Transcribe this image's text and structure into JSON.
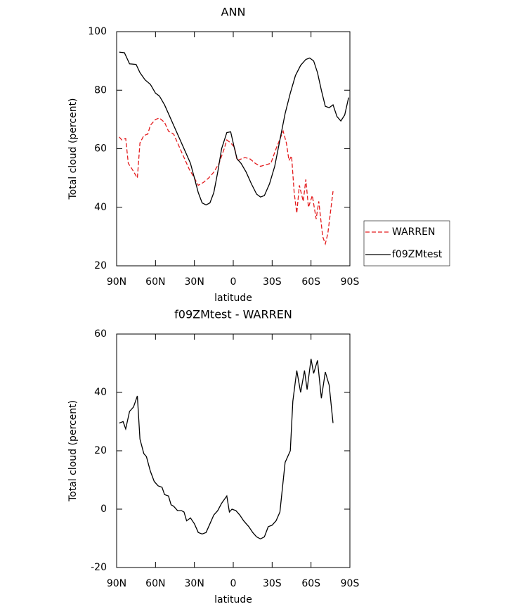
{
  "chart_data": [
    {
      "type": "line",
      "title": "ANN",
      "xlabel": "latitude",
      "ylabel": "Total cloud (percent)",
      "xlim": [
        90,
        -90
      ],
      "ylim": [
        20,
        100
      ],
      "xticks": [
        {
          "value": 90,
          "label": "90N"
        },
        {
          "value": 60,
          "label": "60N"
        },
        {
          "value": 30,
          "label": "30N"
        },
        0,
        {
          "value": -30,
          "label": "30S"
        },
        {
          "value": -60,
          "label": "60S"
        },
        {
          "value": -90,
          "label": "90S"
        }
      ],
      "yticks": [
        20,
        40,
        60,
        80,
        100
      ],
      "legend": "right",
      "series": [
        {
          "name": "WARREN",
          "color": "#e31a1c",
          "line_style": "dashed",
          "x": [
            88,
            86,
            83,
            81,
            78,
            74,
            72,
            69,
            66,
            64,
            60,
            57,
            53,
            50,
            46,
            42,
            38,
            34,
            30,
            27,
            23,
            19,
            15,
            11,
            7,
            5,
            2,
            -1,
            -3,
            -6,
            -9,
            -13,
            -17,
            -21,
            -25,
            -29,
            -33,
            -38.5,
            -41,
            -43,
            -45,
            -47,
            -49,
            -51,
            -54,
            -56,
            -58,
            -61,
            -64,
            -66,
            -69,
            -71,
            -73,
            -77
          ],
          "values": [
            64,
            63,
            63.5,
            55,
            53,
            50,
            62,
            64.5,
            65,
            68,
            70,
            70.5,
            69,
            66,
            65,
            61,
            57,
            53,
            50,
            47.5,
            48.5,
            50,
            52,
            55,
            60,
            63,
            62,
            60.5,
            56,
            56.5,
            57,
            56.5,
            55,
            54,
            54.5,
            55,
            60,
            66,
            62,
            56,
            57.5,
            45,
            38,
            47.5,
            42,
            49.5,
            40,
            44,
            36,
            42,
            30,
            27.5,
            31,
            45.5
          ]
        },
        {
          "name": "f09ZMtest",
          "color": "#000000",
          "line_style": "solid",
          "x": [
            88,
            84,
            80,
            75,
            72,
            68,
            64,
            60,
            57,
            53,
            49,
            45,
            41,
            37,
            33,
            30,
            27,
            24,
            21,
            18,
            15,
            12,
            9,
            5,
            2,
            -1,
            -3,
            -6,
            -10,
            -14,
            -18,
            -21,
            -24,
            -28,
            -32,
            -36,
            -40,
            -44,
            -48,
            -52,
            -56,
            -59,
            -62,
            -65,
            -68,
            -71,
            -74,
            -77,
            -80,
            -83,
            -86,
            -89
          ],
          "values": [
            93,
            92.8,
            89,
            88.8,
            86,
            83.5,
            82,
            79,
            78,
            75,
            71,
            67,
            63,
            59,
            55,
            50,
            45,
            41.5,
            40.8,
            41.5,
            45,
            52,
            60,
            65.5,
            65.8,
            60,
            56.5,
            55,
            52,
            48,
            44.5,
            43.5,
            44,
            48,
            54,
            63,
            72,
            79,
            85,
            88.5,
            90.5,
            91,
            90,
            86,
            80,
            74.5,
            74,
            75,
            71,
            69.5,
            71.5,
            77.5
          ]
        }
      ]
    },
    {
      "type": "line",
      "title": "f09ZMtest - WARREN",
      "xlabel": "latitude",
      "ylabel": "Total cloud (percent)",
      "xlim": [
        90,
        -90
      ],
      "ylim": [
        -20,
        60
      ],
      "xticks": [
        {
          "value": 90,
          "label": "90N"
        },
        {
          "value": 60,
          "label": "60N"
        },
        {
          "value": 30,
          "label": "30N"
        },
        0,
        {
          "value": -30,
          "label": "30S"
        },
        {
          "value": -60,
          "label": "60S"
        },
        {
          "value": -90,
          "label": "90S"
        }
      ],
      "yticks": [
        -20,
        0,
        20,
        40,
        60
      ],
      "series": [
        {
          "color": "#000000",
          "line_style": "solid",
          "x": [
            88,
            85,
            83,
            80,
            77,
            74,
            72,
            69,
            67,
            64,
            61,
            58,
            55,
            53,
            50,
            48,
            46,
            43,
            40,
            38,
            36,
            33,
            30,
            27,
            24,
            21,
            18,
            15,
            12,
            9,
            5,
            3,
            1,
            -2,
            -5,
            -8,
            -12,
            -15,
            -18,
            -21,
            -24,
            -27,
            -30,
            -33,
            -36,
            -40,
            -44,
            -46,
            -49,
            -52,
            -55,
            -57,
            -60,
            -62,
            -65,
            -68,
            -71,
            -74,
            -77
          ],
          "values": [
            29.5,
            30,
            27.5,
            33.5,
            35,
            38.8,
            24,
            19,
            18,
            13,
            9.5,
            8,
            7.5,
            5,
            4.5,
            1.5,
            1,
            -0.5,
            -0.5,
            -1,
            -4,
            -3,
            -5,
            -8,
            -8.5,
            -8,
            -5,
            -2,
            -0.5,
            2,
            4.5,
            -1,
            0,
            -0.5,
            -2,
            -4,
            -6,
            -8,
            -9.5,
            -10.2,
            -9.5,
            -6,
            -5.5,
            -4,
            -1,
            16,
            20,
            37,
            47.5,
            40,
            47.5,
            41,
            51.5,
            46.5,
            51,
            38,
            47,
            42.5,
            29.5
          ]
        }
      ]
    }
  ]
}
